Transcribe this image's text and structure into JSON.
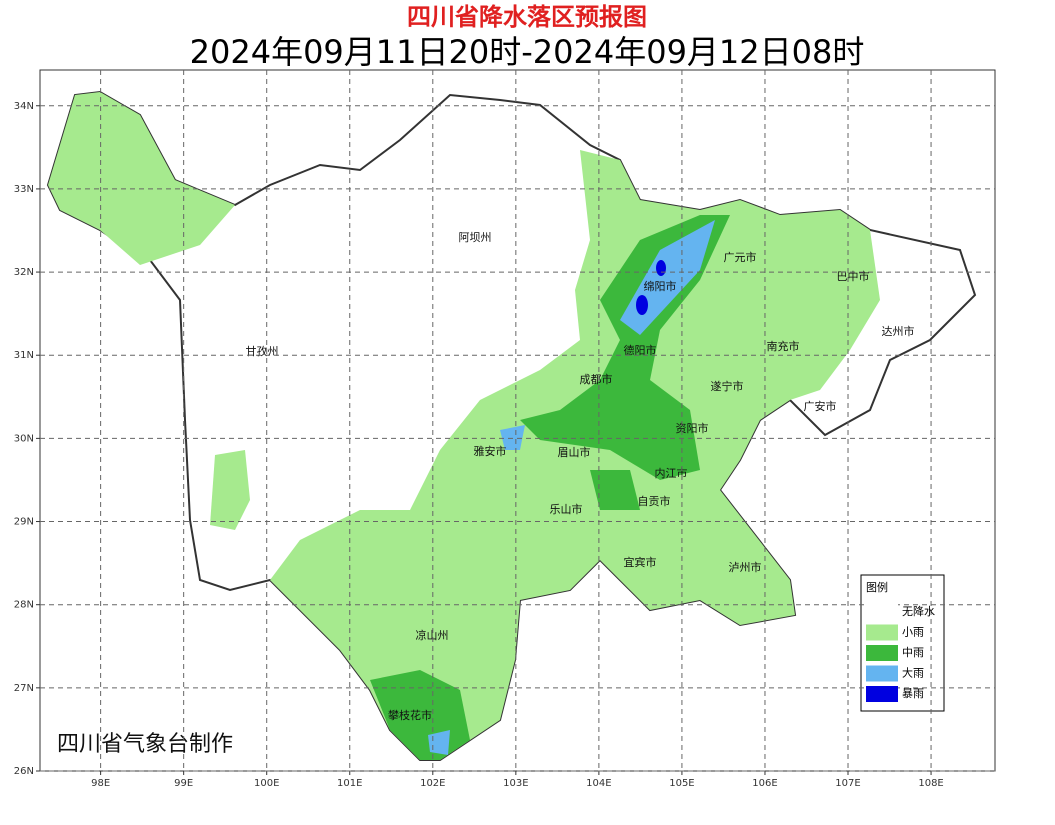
{
  "header": {
    "title": "四川省降水落区预报图",
    "subtitle": "2024年09月11日20时-2024年09月12日08时"
  },
  "map": {
    "xlim": [
      97.27,
      108.77
    ],
    "ylim": [
      26,
      34.43
    ],
    "xticks": [
      {
        "value": 98,
        "label": "98E"
      },
      {
        "value": 99,
        "label": "99E"
      },
      {
        "value": 100,
        "label": "100E"
      },
      {
        "value": 101,
        "label": "101E"
      },
      {
        "value": 102,
        "label": "102E"
      },
      {
        "value": 103,
        "label": "103E"
      },
      {
        "value": 104,
        "label": "104E"
      },
      {
        "value": 105,
        "label": "105E"
      },
      {
        "value": 106,
        "label": "106E"
      },
      {
        "value": 107,
        "label": "107E"
      },
      {
        "value": 108,
        "label": "108E"
      }
    ],
    "yticks": [
      {
        "value": 26,
        "label": "26N"
      },
      {
        "value": 27,
        "label": "27N"
      },
      {
        "value": 28,
        "label": "28N"
      },
      {
        "value": 29,
        "label": "29N"
      },
      {
        "value": 30,
        "label": "30N"
      },
      {
        "value": 31,
        "label": "31N"
      },
      {
        "value": 32,
        "label": "32N"
      },
      {
        "value": 33,
        "label": "33N"
      },
      {
        "value": 34,
        "label": "34N"
      }
    ],
    "grid": true,
    "cities": [
      "阿坝州",
      "甘孜州",
      "绵阳市",
      "广元市",
      "巴中市",
      "达州市",
      "南充市",
      "德阳市",
      "成都市",
      "遂宁市",
      "广安市",
      "资阳市",
      "雅安市",
      "眉山市",
      "内江市",
      "自贡市",
      "乐山市",
      "宜宾市",
      "泸州市",
      "凉山州",
      "攀枝花市"
    ],
    "credit": "四川省气象台制作"
  },
  "legend": {
    "title": "图例",
    "items": [
      {
        "name": "无降水",
        "color": "#ffffff"
      },
      {
        "name": "小雨",
        "color": "#a6ea8e"
      },
      {
        "name": "中雨",
        "color": "#3cb83c"
      },
      {
        "name": "大雨",
        "color": "#64b4f0"
      },
      {
        "name": "暴雨",
        "color": "#0000e0"
      }
    ]
  }
}
